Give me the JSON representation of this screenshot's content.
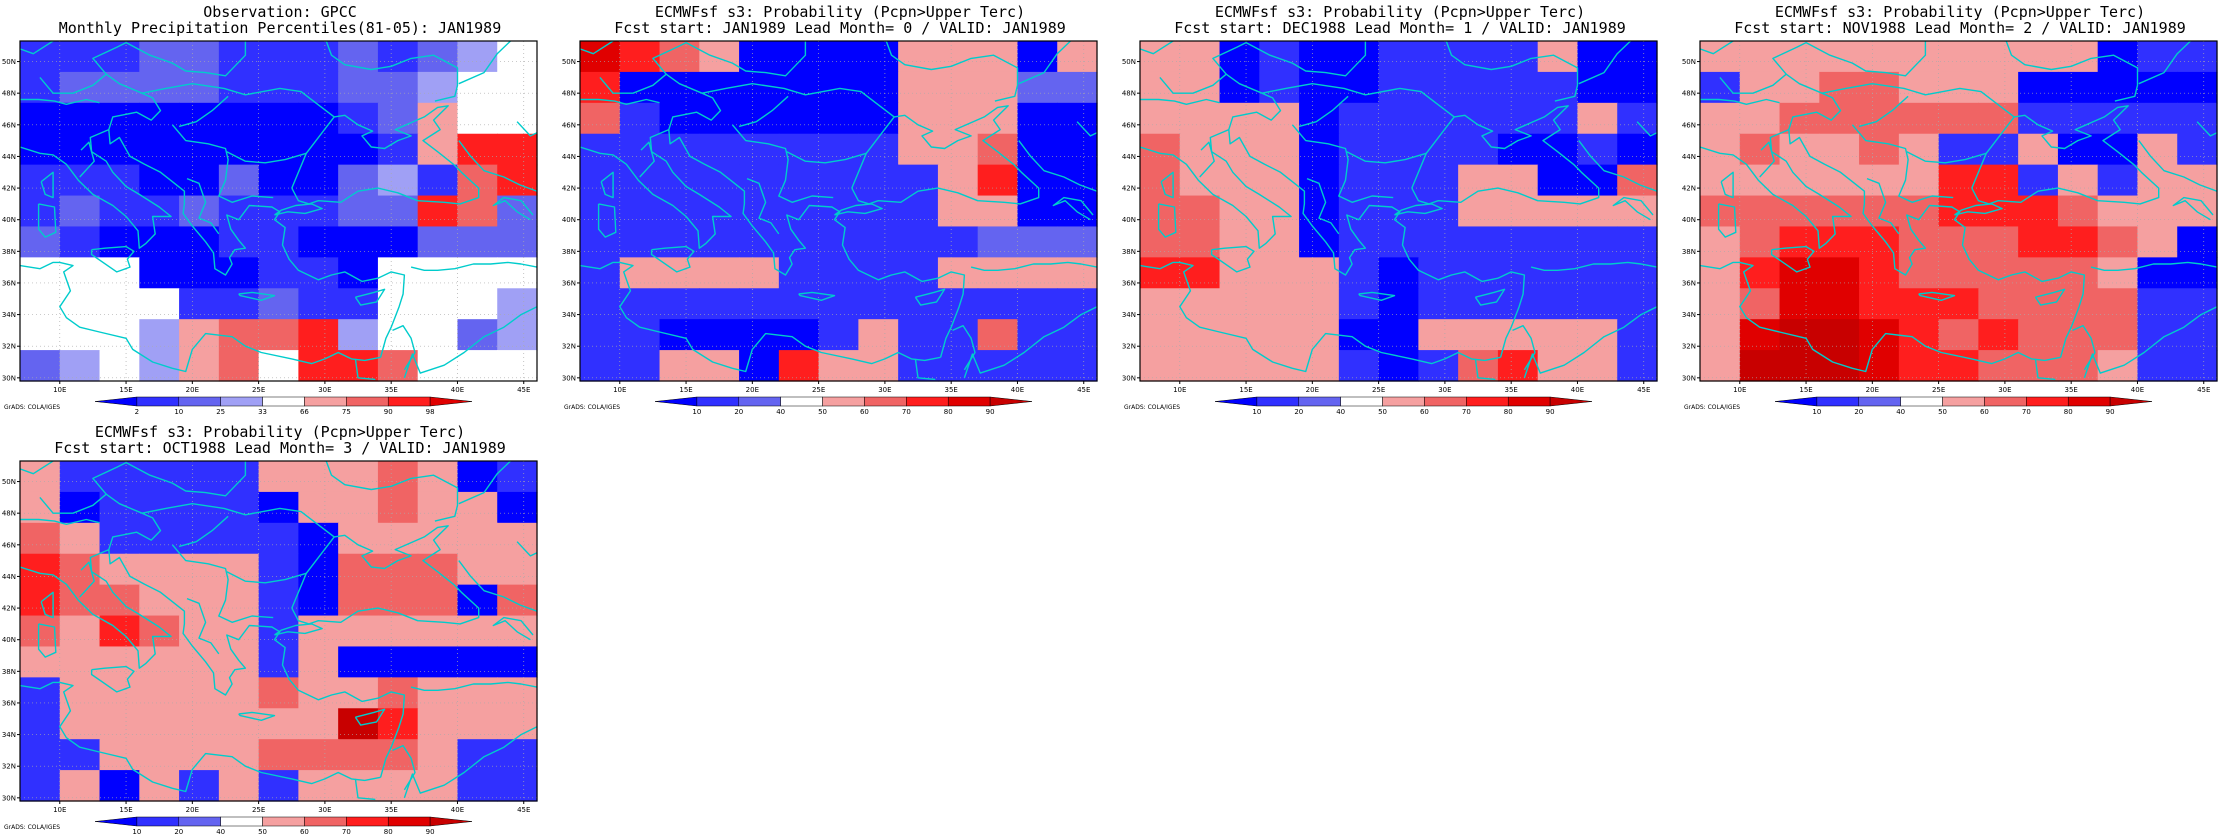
{
  "figure": {
    "panels": [
      {
        "title_line1": "Observation: GPCC",
        "title_line2": "Monthly Precipitation Percentiles(81-05): JAN1989",
        "kind": "obs"
      },
      {
        "title_line1": "ECMWFsf s3: Probability (Pcpn>Upper Terc)",
        "title_line2": "Fcst start: JAN1989  Lead Month= 0 / VALID: JAN1989",
        "kind": "prob"
      },
      {
        "title_line1": "ECMWFsf s3: Probability (Pcpn>Upper Terc)",
        "title_line2": "Fcst start: DEC1988  Lead Month= 1 / VALID: JAN1989",
        "kind": "prob"
      },
      {
        "title_line1": "ECMWFsf s3: Probability (Pcpn>Upper Terc)",
        "title_line2": "Fcst start: NOV1988  Lead Month= 2 / VALID: JAN1989",
        "kind": "prob"
      },
      {
        "title_line1": "ECMWFsf s3: Probability (Pcpn>Upper Terc)",
        "title_line2": "Fcst start: OCT1988  Lead Month= 3 / VALID: JAN1989",
        "kind": "prob"
      }
    ],
    "credit": "GrADS: COLA/IGES",
    "lat_labels": [
      "30N",
      "32N",
      "34N",
      "36N",
      "38N",
      "40N",
      "42N",
      "44N",
      "46N",
      "48N",
      "50N"
    ],
    "lon_labels": [
      "10E",
      "15E",
      "20E",
      "25E",
      "30E",
      "35E",
      "40E",
      "45E"
    ],
    "lon_range": [
      7,
      46
    ],
    "lat_range": [
      29.8,
      51.3
    ],
    "colorbars": {
      "obs": {
        "labels": [
          "2",
          "10",
          "25",
          "33",
          "66",
          "75",
          "90",
          "98"
        ],
        "colors": [
          "#0000ff",
          "#3030ff",
          "#6464f0",
          "#a0a0f5",
          "#ffffff",
          "#f5a0a0",
          "#f06464",
          "#ff1e1e",
          "#e00000"
        ]
      },
      "prob": {
        "labels": [
          "10",
          "20",
          "40",
          "50",
          "60",
          "70",
          "80",
          "90"
        ],
        "colors": [
          "#0000ff",
          "#3030ff",
          "#6464f0",
          "#ffffff",
          "#f5a0a0",
          "#f06464",
          "#ff1e1e",
          "#e00000",
          "#c80000"
        ]
      }
    },
    "colors": {
      "coast": "#00cccc",
      "grid": "#aaaaaa"
    }
  }
}
